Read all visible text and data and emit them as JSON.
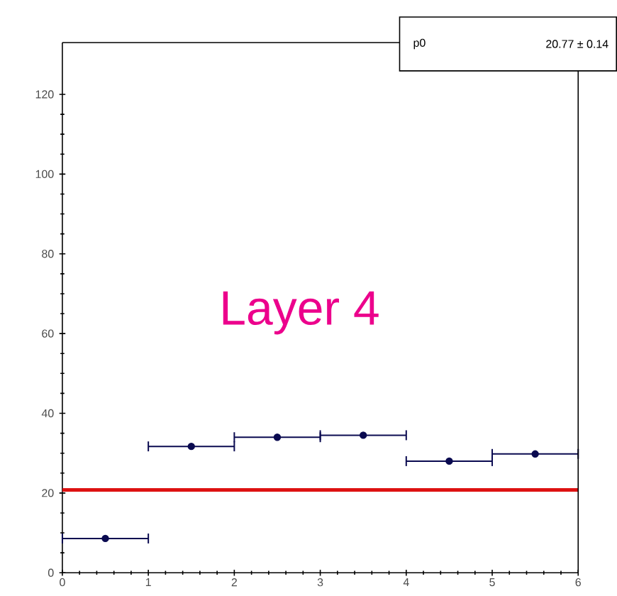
{
  "chart_data": {
    "type": "scatter",
    "x": [
      0.5,
      1.5,
      2.5,
      3.5,
      4.5,
      5.5
    ],
    "series": [
      {
        "color": "#0a0a50",
        "values": [
          8.6,
          31.7,
          34.0,
          34.5,
          28.0,
          29.8
        ],
        "xerrors": [
          0.5,
          0.5,
          0.5,
          0.5,
          0.5,
          0.5
        ]
      }
    ],
    "marker": "circle",
    "xlim": [
      0,
      6
    ],
    "ylim": [
      0,
      133
    ],
    "xticks": [
      0,
      1,
      2,
      3,
      4,
      5,
      6
    ],
    "yticks": [
      0,
      20,
      40,
      60,
      80,
      100,
      120
    ],
    "ref_lines": [
      {
        "axis": "y",
        "value": 20.77,
        "color": "#dd1111"
      }
    ],
    "annotations": [
      "Layer 4",
      "p0",
      "20.77 ± 0.14"
    ],
    "grid": false
  }
}
